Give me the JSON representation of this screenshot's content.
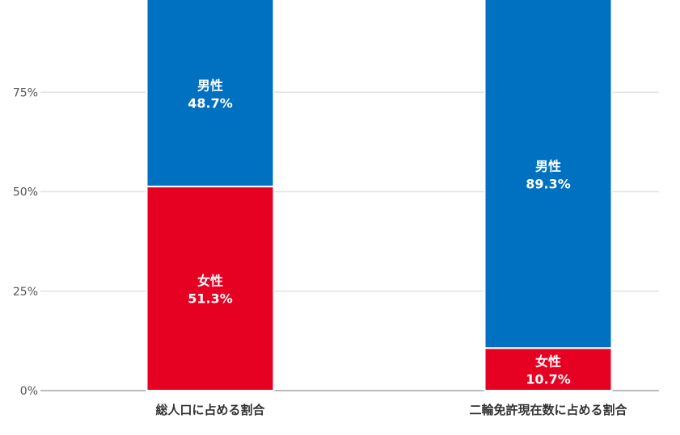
{
  "chart_data": {
    "type": "bar",
    "stacked": true,
    "categories": [
      "総人口に占める割合",
      "二輪免許現在数に占める割合"
    ],
    "series": [
      {
        "name": "女性",
        "values": [
          51.3,
          10.7
        ],
        "labels": [
          "51.3%",
          "10.7%"
        ],
        "color": "#e60022"
      },
      {
        "name": "男性",
        "values": [
          48.7,
          89.3
        ],
        "labels": [
          "48.7%",
          "89.3%"
        ],
        "color": "#0070c0"
      }
    ],
    "ylim": [
      0,
      100
    ],
    "yticks": [
      {
        "value": 0,
        "label": "0%"
      },
      {
        "value": 25,
        "label": "25%"
      },
      {
        "value": 50,
        "label": "50%"
      },
      {
        "value": 75,
        "label": "75%"
      }
    ],
    "grid": true,
    "title": "",
    "xlabel": "",
    "ylabel": ""
  }
}
